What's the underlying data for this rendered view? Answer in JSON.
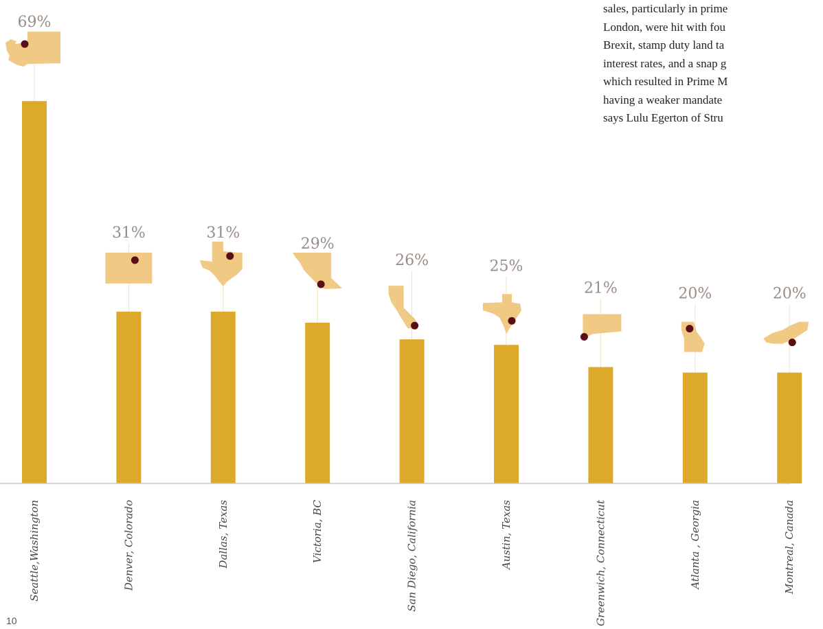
{
  "body_text": [
    "sales, particularly in prime",
    "London, were hit with fou",
    "Brexit, stamp duty land ta",
    "interest rates, and a snap g",
    "which resulted in Prime M",
    "having a weaker mandate",
    "says Lulu Egerton of Stru"
  ],
  "page_number": "10",
  "colors": {
    "bar": "#dda92a",
    "map": "#f0c985",
    "dot": "#5a0e16",
    "guide": "#f1e2c4",
    "baseline": "#c9c5c5"
  },
  "chart_data": {
    "type": "bar",
    "title": "",
    "xlabel": "",
    "ylabel": "",
    "ylim": [
      0,
      80
    ],
    "categories": [
      "Seattle,Washington",
      "Denver, Colorado",
      "Dallas, Texas",
      "Victoria, BC",
      "San Diego, California",
      "Austin, Texas",
      "Greenwich, Connecticut",
      "Atlanta , Georgia",
      "Montreal, Canada"
    ],
    "values": [
      69,
      31,
      31,
      29,
      26,
      25,
      21,
      20,
      20
    ],
    "value_labels": [
      "69%",
      "31%",
      "31%",
      "29%",
      "26%",
      "25%",
      "21%",
      "20%",
      "20%"
    ],
    "map_icons": [
      "washington-map-icon",
      "colorado-map-icon",
      "texas-map-icon",
      "british-columbia-map-icon",
      "california-map-icon",
      "texas-map-icon",
      "connecticut-map-icon",
      "georgia-map-icon",
      "quebec-map-icon"
    ]
  }
}
